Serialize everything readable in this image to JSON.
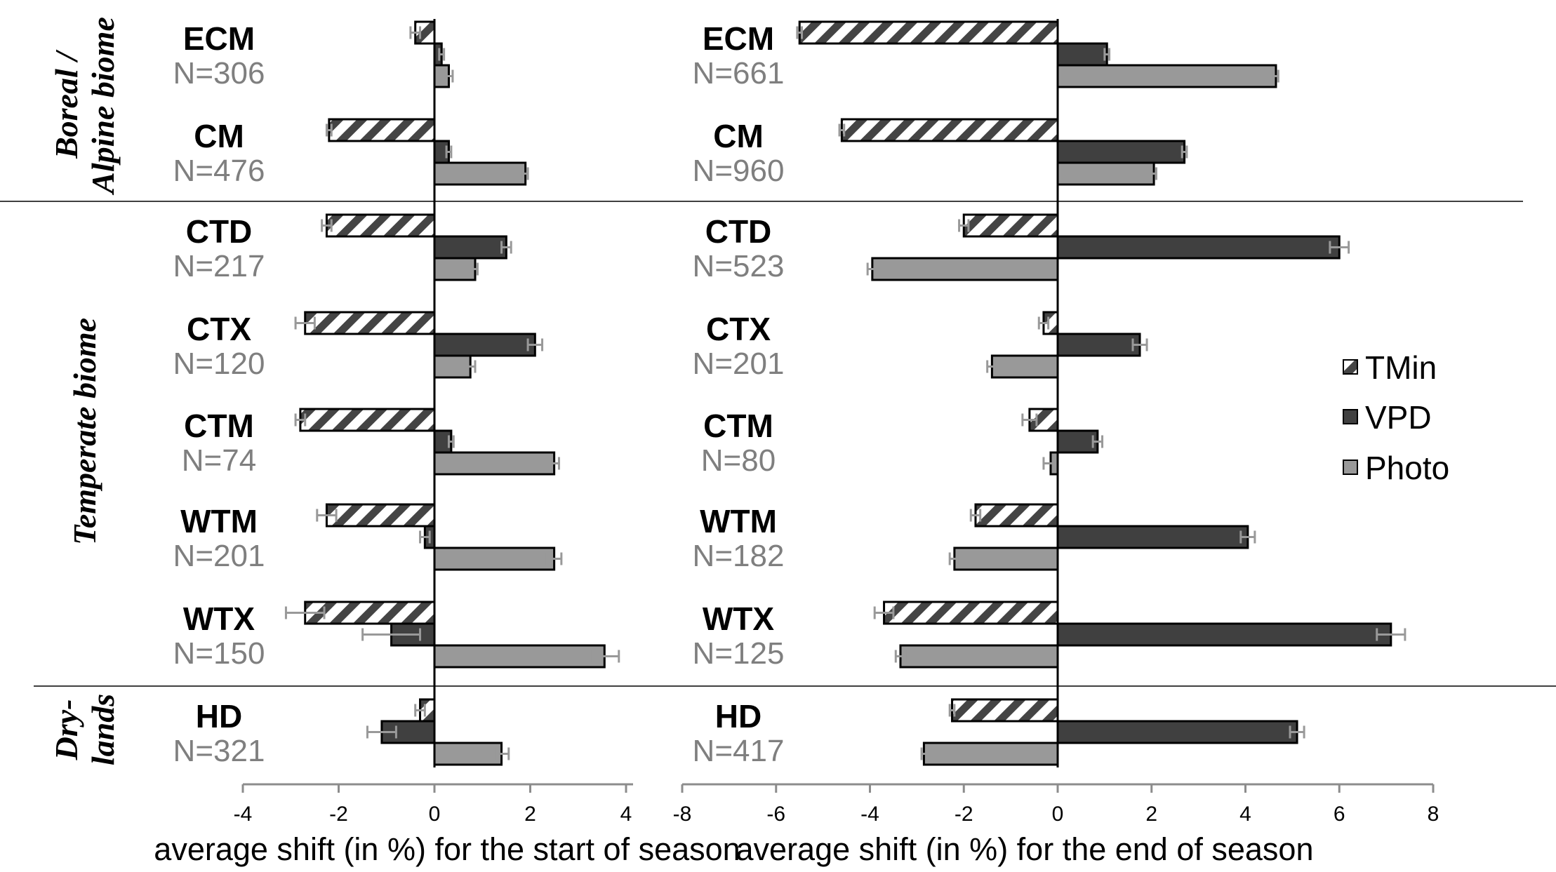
{
  "chart_data": {
    "type": "bar",
    "orientation": "horizontal",
    "colors": {
      "TMin": "#ffffff",
      "VPD": "#404040",
      "Photo": "#999999",
      "error_bar": "#999999",
      "hatch": "#444444"
    },
    "legend": {
      "position": "right",
      "entries": [
        "TMin",
        "VPD",
        "Photo"
      ]
    },
    "biomes": [
      {
        "name": "Boreal / Alpine biome",
        "lines": [
          "Boreal /",
          "Alpine biome"
        ],
        "classes": [
          "ECM",
          "CM"
        ]
      },
      {
        "name": "Temperate biome",
        "lines": [
          "Temperate biome"
        ],
        "classes": [
          "CTD",
          "CTX",
          "CTM",
          "WTM",
          "WTX"
        ]
      },
      {
        "name": "Dry-lands",
        "lines": [
          "Dry-",
          "lands"
        ],
        "classes": [
          "HD"
        ]
      }
    ],
    "panels": [
      {
        "id": "start",
        "xlabel": "average shift (in %) for the start of season",
        "xlim": [
          -4,
          4
        ],
        "ticks": [
          -4,
          -2,
          0,
          2,
          4
        ],
        "groups": [
          {
            "label": "ECM",
            "n": "N=306",
            "values": {
              "TMin": -0.4,
              "VPD": 0.15,
              "Photo": 0.3
            },
            "errors": {
              "TMin": 0.1,
              "VPD": 0.05,
              "Photo": 0.08
            }
          },
          {
            "label": "CM",
            "n": "N=476",
            "values": {
              "TMin": -2.2,
              "VPD": 0.3,
              "Photo": 1.9
            },
            "errors": {
              "TMin": 0.05,
              "VPD": 0.05,
              "Photo": 0.05
            }
          },
          {
            "label": "CTD",
            "n": "N=217",
            "values": {
              "TMin": -2.25,
              "VPD": 1.5,
              "Photo": 0.85
            },
            "errors": {
              "TMin": 0.1,
              "VPD": 0.1,
              "Photo": 0.05
            }
          },
          {
            "label": "CTX",
            "n": "N=120",
            "values": {
              "TMin": -2.7,
              "VPD": 2.1,
              "Photo": 0.75
            },
            "errors": {
              "TMin": 0.2,
              "VPD": 0.15,
              "Photo": 0.1
            }
          },
          {
            "label": "CTM",
            "n": "N=74",
            "values": {
              "TMin": -2.8,
              "VPD": 0.35,
              "Photo": 2.5
            },
            "errors": {
              "TMin": 0.1,
              "VPD": 0.05,
              "Photo": 0.1
            }
          },
          {
            "label": "WTM",
            "n": "N=201",
            "values": {
              "TMin": -2.25,
              "VPD": -0.2,
              "Photo": 2.5
            },
            "errors": {
              "TMin": 0.2,
              "VPD": 0.1,
              "Photo": 0.15
            }
          },
          {
            "label": "WTX",
            "n": "N=150",
            "values": {
              "TMin": -2.7,
              "VPD": -0.9,
              "Photo": 3.55
            },
            "errors": {
              "TMin": 0.4,
              "VPD": 0.6,
              "Photo": 0.3
            }
          },
          {
            "label": "HD",
            "n": "N=321",
            "values": {
              "TMin": -0.3,
              "VPD": -1.1,
              "Photo": 1.4
            },
            "errors": {
              "TMin": 0.1,
              "VPD": 0.3,
              "Photo": 0.15
            }
          }
        ]
      },
      {
        "id": "end",
        "xlabel": "average shift (in %) for the end of season",
        "xlim": [
          -8,
          8
        ],
        "ticks": [
          -8,
          -6,
          -4,
          -2,
          0,
          2,
          4,
          6,
          8
        ],
        "groups": [
          {
            "label": "ECM",
            "n": "N=661",
            "values": {
              "TMin": -5.5,
              "VPD": 1.05,
              "Photo": 4.65
            },
            "errors": {
              "TMin": 0.05,
              "VPD": 0.05,
              "Photo": 0.05
            }
          },
          {
            "label": "CM",
            "n": "N=960",
            "values": {
              "TMin": -4.6,
              "VPD": 2.7,
              "Photo": 2.05
            },
            "errors": {
              "TMin": 0.05,
              "VPD": 0.05,
              "Photo": 0.05
            }
          },
          {
            "label": "CTD",
            "n": "N=523",
            "values": {
              "TMin": -2.0,
              "VPD": 6.0,
              "Photo": -3.95
            },
            "errors": {
              "TMin": 0.1,
              "VPD": 0.2,
              "Photo": 0.1
            }
          },
          {
            "label": "CTX",
            "n": "N=201",
            "values": {
              "TMin": -0.3,
              "VPD": 1.75,
              "Photo": -1.4
            },
            "errors": {
              "TMin": 0.1,
              "VPD": 0.15,
              "Photo": 0.1
            }
          },
          {
            "label": "CTM",
            "n": "N=80",
            "values": {
              "TMin": -0.6,
              "VPD": 0.85,
              "Photo": -0.15
            },
            "errors": {
              "TMin": 0.15,
              "VPD": 0.1,
              "Photo": 0.15
            }
          },
          {
            "label": "WTM",
            "n": "N=182",
            "values": {
              "TMin": -1.75,
              "VPD": 4.05,
              "Photo": -2.2
            },
            "errors": {
              "TMin": 0.1,
              "VPD": 0.15,
              "Photo": 0.1
            }
          },
          {
            "label": "WTX",
            "n": "N=125",
            "values": {
              "TMin": -3.7,
              "VPD": 7.1,
              "Photo": -3.35
            },
            "errors": {
              "TMin": 0.2,
              "VPD": 0.3,
              "Photo": 0.1
            }
          },
          {
            "label": "HD",
            "n": "N=417",
            "values": {
              "TMin": -2.25,
              "VPD": 5.1,
              "Photo": -2.85
            },
            "errors": {
              "TMin": 0.05,
              "VPD": 0.15,
              "Photo": 0.05
            }
          }
        ]
      }
    ]
  }
}
